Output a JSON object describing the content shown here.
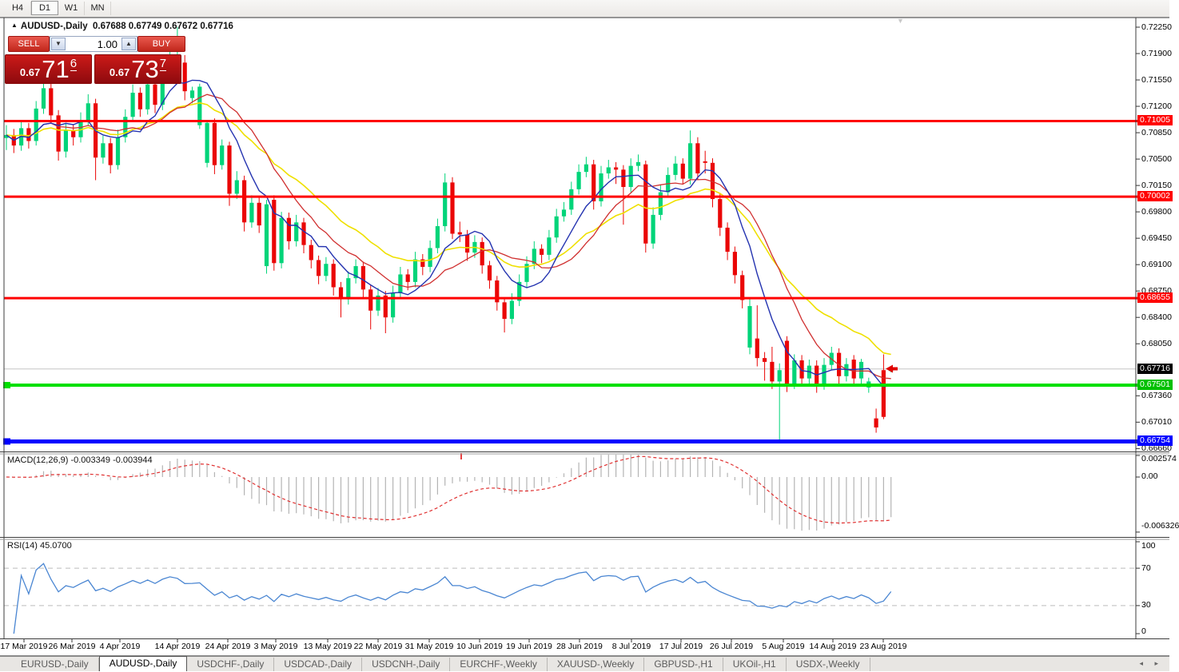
{
  "toolbar": {
    "timeframes": [
      {
        "label": "H4",
        "active": false
      },
      {
        "label": "D1",
        "active": true
      },
      {
        "label": "W1",
        "active": false
      },
      {
        "label": "MN",
        "active": false
      }
    ]
  },
  "chart_header": {
    "collapse_icon": "up-triangle",
    "title": "AUDUSD-,Daily",
    "ohlc_text": "0.67688 0.67749 0.67672 0.67716"
  },
  "trade_panel": {
    "sell_label": "SELL",
    "buy_label": "BUY",
    "volume": "1.00",
    "sell_price": {
      "prefix": "0.67",
      "big": "71",
      "pip": "6"
    },
    "buy_price": {
      "prefix": "0.67",
      "big": "73",
      "pip": "7"
    }
  },
  "price_axis": {
    "ticks": [
      "0.72250",
      "0.71900",
      "0.71550",
      "0.71200",
      "0.70850",
      "0.70500",
      "0.70150",
      "0.69800",
      "0.69450",
      "0.69100",
      "0.68750",
      "0.68400",
      "0.68050",
      "0.67360",
      "0.67010",
      "0.66660"
    ],
    "chips": [
      {
        "label": "0.71005",
        "price": 0.71005,
        "color": "#ff0000"
      },
      {
        "label": "0.70002",
        "price": 0.70002,
        "color": "#ff0000"
      },
      {
        "label": "0.68655",
        "price": 0.68655,
        "color": "#ff0000"
      },
      {
        "label": "0.67716",
        "price": 0.67716,
        "color": "#000000"
      },
      {
        "label": "0.67501",
        "price": 0.67501,
        "color": "#00c000"
      },
      {
        "label": "0.66754",
        "price": 0.66754,
        "color": "#0000ff"
      }
    ]
  },
  "horizontal_lines": [
    {
      "price": 0.71005,
      "color": "#ff0000",
      "width": 3,
      "handle": false
    },
    {
      "price": 0.70002,
      "color": "#ff0000",
      "width": 3,
      "handle": false
    },
    {
      "price": 0.68655,
      "color": "#ff0000",
      "width": 3,
      "handle": false
    },
    {
      "price": 0.67501,
      "color": "#00e000",
      "width": 4,
      "handle": true
    },
    {
      "price": 0.66754,
      "color": "#0000ff",
      "width": 5,
      "handle": true
    }
  ],
  "current_price": 0.67716,
  "macd_panel": {
    "label": "MACD(12,26,9) -0.003349 -0.003944",
    "axis_labels": [
      "0.002574",
      "0.00",
      "-0.006326"
    ],
    "axis_values": [
      0.002574,
      0.0,
      -0.006326
    ],
    "macd_value": -0.003349,
    "signal_value": -0.003944,
    "params": [
      12,
      26,
      9
    ]
  },
  "rsi_panel": {
    "label": "RSI(14) 45.0700",
    "value": 45.07,
    "period": 14,
    "axis_labels": [
      "100",
      "70",
      "30",
      "0"
    ],
    "axis_values": [
      100,
      70,
      30,
      0
    ],
    "levels": [
      70,
      30
    ]
  },
  "date_axis": [
    {
      "label": "17 Mar 2019",
      "x": 30
    },
    {
      "label": "26 Mar 2019",
      "x": 90
    },
    {
      "label": "4 Apr 2019",
      "x": 150
    },
    {
      "label": "14 Apr 2019",
      "x": 222
    },
    {
      "label": "24 Apr 2019",
      "x": 285
    },
    {
      "label": "3 May 2019",
      "x": 345
    },
    {
      "label": "13 May 2019",
      "x": 410
    },
    {
      "label": "22 May 2019",
      "x": 473
    },
    {
      "label": "31 May 2019",
      "x": 537
    },
    {
      "label": "10 Jun 2019",
      "x": 600
    },
    {
      "label": "19 Jun 2019",
      "x": 662
    },
    {
      "label": "28 Jun 2019",
      "x": 725
    },
    {
      "label": "8 Jul 2019",
      "x": 790
    },
    {
      "label": "17 Jul 2019",
      "x": 852
    },
    {
      "label": "26 Jul 2019",
      "x": 915
    },
    {
      "label": "5 Aug 2019",
      "x": 980
    },
    {
      "label": "14 Aug 2019",
      "x": 1042
    },
    {
      "label": "23 Aug 2019",
      "x": 1105
    }
  ],
  "tabs": {
    "items": [
      {
        "label": "EURUSD-,Daily",
        "active": false
      },
      {
        "label": "AUDUSD-,Daily",
        "active": true
      },
      {
        "label": "USDCHF-,Daily",
        "active": false
      },
      {
        "label": "USDCAD-,Daily",
        "active": false
      },
      {
        "label": "USDCNH-,Daily",
        "active": false
      },
      {
        "label": "EURCHF-,Weekly",
        "active": false
      },
      {
        "label": "XAUUSD-,Weekly",
        "active": false
      },
      {
        "label": "GBPUSD-,H1",
        "active": false
      },
      {
        "label": "UKOil-,H1",
        "active": false
      },
      {
        "label": "USDX-,Weekly",
        "active": false
      }
    ],
    "nav_icons": "◂ ▸"
  },
  "colors": {
    "up": "#00d479",
    "down": "#ea0606",
    "wick_up": "#00c06e",
    "wick_down": "#d40404",
    "ma_blue": "#2433b0",
    "ma_red": "#d03030",
    "ma_yellow": "#efe000",
    "macd_hist": "#b4b4b4",
    "macd_signal": "#e03030",
    "rsi_line": "#4a86d2",
    "current_line": "#c6c6c6",
    "level_dash": "#c8c8c8",
    "border": "#4a4a4a"
  },
  "chart_data": {
    "type": "candlestick",
    "symbol": "AUDUSD-",
    "timeframe": "Daily",
    "ylim": [
      0.6666,
      0.7225
    ],
    "last_bar": {
      "open": 0.67688,
      "high": 0.67749,
      "low": 0.67672,
      "close": 0.67716
    },
    "ma_periods": {
      "blue_fast_sma": 7,
      "red_mid_sma": 13,
      "yellow_slow_ema": 21
    },
    "ohlc": [
      [
        0.7078,
        0.7095,
        0.7062,
        0.7082
      ],
      [
        0.7082,
        0.709,
        0.7058,
        0.7068
      ],
      [
        0.7068,
        0.7101,
        0.7061,
        0.7091
      ],
      [
        0.7091,
        0.7098,
        0.7064,
        0.7074
      ],
      [
        0.7074,
        0.7127,
        0.7068,
        0.7117
      ],
      [
        0.7117,
        0.7172,
        0.711,
        0.7144
      ],
      [
        0.7144,
        0.7151,
        0.7098,
        0.7108
      ],
      [
        0.7108,
        0.7115,
        0.7048,
        0.706
      ],
      [
        0.706,
        0.7098,
        0.7052,
        0.7088
      ],
      [
        0.7088,
        0.7096,
        0.7068,
        0.7079
      ],
      [
        0.7079,
        0.7112,
        0.7072,
        0.7101
      ],
      [
        0.7101,
        0.7136,
        0.7094,
        0.7124
      ],
      [
        0.7124,
        0.713,
        0.7022,
        0.7052
      ],
      [
        0.7052,
        0.7081,
        0.7044,
        0.7071
      ],
      [
        0.7071,
        0.7078,
        0.7031,
        0.7042
      ],
      [
        0.7042,
        0.7089,
        0.7036,
        0.7079
      ],
      [
        0.7079,
        0.7116,
        0.7072,
        0.7106
      ],
      [
        0.7106,
        0.7149,
        0.7099,
        0.7138
      ],
      [
        0.7138,
        0.7145,
        0.7106,
        0.7116
      ],
      [
        0.7116,
        0.7159,
        0.7109,
        0.7149
      ],
      [
        0.7149,
        0.7156,
        0.7111,
        0.7122
      ],
      [
        0.7122,
        0.7174,
        0.7115,
        0.7163
      ],
      [
        0.7163,
        0.7199,
        0.7156,
        0.7189
      ],
      [
        0.7157,
        0.7225,
        0.715,
        0.7178
      ],
      [
        0.7178,
        0.7188,
        0.7128,
        0.714
      ],
      [
        0.7131,
        0.7146,
        0.7124,
        0.7141
      ],
      [
        0.7095,
        0.715,
        0.709,
        0.7146
      ],
      [
        0.7045,
        0.7102,
        0.7039,
        0.7098
      ],
      [
        0.7098,
        0.7104,
        0.703,
        0.7042
      ],
      [
        0.7042,
        0.7076,
        0.7036,
        0.7068
      ],
      [
        0.7068,
        0.7073,
        0.6988,
        0.7004
      ],
      [
        0.7004,
        0.7034,
        0.6997,
        0.7022
      ],
      [
        0.7022,
        0.7028,
        0.6954,
        0.6966
      ],
      [
        0.6966,
        0.7002,
        0.6959,
        0.6992
      ],
      [
        0.6992,
        0.6999,
        0.6952,
        0.6962
      ],
      [
        0.6908,
        0.6996,
        0.6898,
        0.699
      ],
      [
        0.6996,
        0.7002,
        0.6902,
        0.6912
      ],
      [
        0.6912,
        0.698,
        0.6905,
        0.6972
      ],
      [
        0.6972,
        0.6979,
        0.693,
        0.6941
      ],
      [
        0.6941,
        0.6976,
        0.6934,
        0.6966
      ],
      [
        0.6966,
        0.6972,
        0.6925,
        0.6936
      ],
      [
        0.6936,
        0.6943,
        0.6905,
        0.6916
      ],
      [
        0.6916,
        0.6922,
        0.6884,
        0.6895
      ],
      [
        0.6895,
        0.692,
        0.6888,
        0.6911
      ],
      [
        0.6911,
        0.6917,
        0.6869,
        0.688
      ],
      [
        0.688,
        0.6887,
        0.684,
        0.6864
      ],
      [
        0.6864,
        0.6901,
        0.6857,
        0.6892
      ],
      [
        0.6892,
        0.6917,
        0.6885,
        0.6908
      ],
      [
        0.6908,
        0.6914,
        0.6866,
        0.6877
      ],
      [
        0.6877,
        0.6883,
        0.6824,
        0.6849
      ],
      [
        0.6849,
        0.6879,
        0.6842,
        0.6869
      ],
      [
        0.6869,
        0.6875,
        0.6819,
        0.684
      ],
      [
        0.684,
        0.6882,
        0.6833,
        0.6872
      ],
      [
        0.6872,
        0.6907,
        0.6865,
        0.6897
      ],
      [
        0.6897,
        0.6904,
        0.6876,
        0.6887
      ],
      [
        0.6887,
        0.6927,
        0.688,
        0.6917
      ],
      [
        0.6917,
        0.6924,
        0.6896,
        0.6907
      ],
      [
        0.6907,
        0.6942,
        0.69,
        0.6932
      ],
      [
        0.6932,
        0.6971,
        0.6925,
        0.6961
      ],
      [
        0.6961,
        0.7031,
        0.6954,
        0.7019
      ],
      [
        0.7019,
        0.7026,
        0.6944,
        0.6951
      ],
      [
        0.6953,
        0.6967,
        0.694,
        0.695
      ],
      [
        0.695,
        0.6956,
        0.6915,
        0.6926
      ],
      [
        0.6926,
        0.6949,
        0.6919,
        0.694
      ],
      [
        0.694,
        0.6946,
        0.6898,
        0.6909
      ],
      [
        0.6909,
        0.6915,
        0.6878,
        0.6889
      ],
      [
        0.6889,
        0.6895,
        0.6849,
        0.686
      ],
      [
        0.686,
        0.6866,
        0.682,
        0.6838
      ],
      [
        0.6838,
        0.6872,
        0.6831,
        0.6862
      ],
      [
        0.6862,
        0.6897,
        0.6855,
        0.6887
      ],
      [
        0.6887,
        0.6921,
        0.688,
        0.6911
      ],
      [
        0.6911,
        0.6941,
        0.6904,
        0.6931
      ],
      [
        0.6931,
        0.6937,
        0.6912,
        0.6923
      ],
      [
        0.6923,
        0.6956,
        0.6916,
        0.6946
      ],
      [
        0.6946,
        0.6984,
        0.6939,
        0.6974
      ],
      [
        0.6974,
        0.6993,
        0.6967,
        0.6983
      ],
      [
        0.6983,
        0.702,
        0.6976,
        0.701
      ],
      [
        0.701,
        0.7043,
        0.7003,
        0.7033
      ],
      [
        0.7033,
        0.7053,
        0.7026,
        0.7043
      ],
      [
        0.7043,
        0.7049,
        0.6983,
        0.6994
      ],
      [
        0.6994,
        0.7041,
        0.6987,
        0.7031
      ],
      [
        0.7031,
        0.7049,
        0.7024,
        0.7039
      ],
      [
        0.7039,
        0.7046,
        0.7017,
        0.7036
      ],
      [
        0.7036,
        0.7042,
        0.6963,
        0.7013
      ],
      [
        0.7013,
        0.7051,
        0.7006,
        0.7041
      ],
      [
        0.7041,
        0.7056,
        0.7034,
        0.7046
      ],
      [
        0.7043,
        0.7048,
        0.6926,
        0.6938
      ],
      [
        0.6938,
        0.6986,
        0.6931,
        0.6976
      ],
      [
        0.6976,
        0.7016,
        0.6969,
        0.7006
      ],
      [
        0.7006,
        0.7039,
        0.6999,
        0.7029
      ],
      [
        0.7029,
        0.7054,
        0.7022,
        0.7044
      ],
      [
        0.7044,
        0.7051,
        0.7017,
        0.7024
      ],
      [
        0.7024,
        0.7088,
        0.7016,
        0.7071
      ],
      [
        0.7071,
        0.7079,
        0.7022,
        0.7031
      ],
      [
        0.7047,
        0.7061,
        0.7031,
        0.7045
      ],
      [
        0.7045,
        0.7051,
        0.6986,
        0.6997
      ],
      [
        0.6997,
        0.7004,
        0.6948,
        0.6959
      ],
      [
        0.6959,
        0.6966,
        0.6916,
        0.6927
      ],
      [
        0.6927,
        0.6934,
        0.6885,
        0.6896
      ],
      [
        0.6896,
        0.6902,
        0.6852,
        0.6863
      ],
      [
        0.68,
        0.6865,
        0.6791,
        0.6855
      ],
      [
        0.6812,
        0.6856,
        0.6775,
        0.6786
      ],
      [
        0.6786,
        0.6794,
        0.6756,
        0.6781
      ],
      [
        0.6781,
        0.6801,
        0.6745,
        0.6755
      ],
      [
        0.6755,
        0.6779,
        0.6677,
        0.677
      ],
      [
        0.6809,
        0.6815,
        0.6741,
        0.6752
      ],
      [
        0.6752,
        0.6791,
        0.6745,
        0.6783
      ],
      [
        0.6783,
        0.679,
        0.6748,
        0.6759
      ],
      [
        0.6759,
        0.6784,
        0.6752,
        0.6776
      ],
      [
        0.6776,
        0.6783,
        0.674,
        0.6751
      ],
      [
        0.6751,
        0.6786,
        0.6744,
        0.6777
      ],
      [
        0.6777,
        0.6801,
        0.677,
        0.6793
      ],
      [
        0.6793,
        0.6799,
        0.6751,
        0.6762
      ],
      [
        0.6762,
        0.6786,
        0.6755,
        0.6778
      ],
      [
        0.6784,
        0.679,
        0.6752,
        0.6759
      ],
      [
        0.6759,
        0.6785,
        0.6752,
        0.6781
      ],
      [
        0.6747,
        0.676,
        0.674,
        0.6755
      ],
      [
        0.6706,
        0.6719,
        0.6687,
        0.6694
      ],
      [
        0.677,
        0.6791,
        0.6705,
        0.6708
      ],
      [
        0.67688,
        0.67749,
        0.67672,
        0.67716
      ]
    ]
  }
}
